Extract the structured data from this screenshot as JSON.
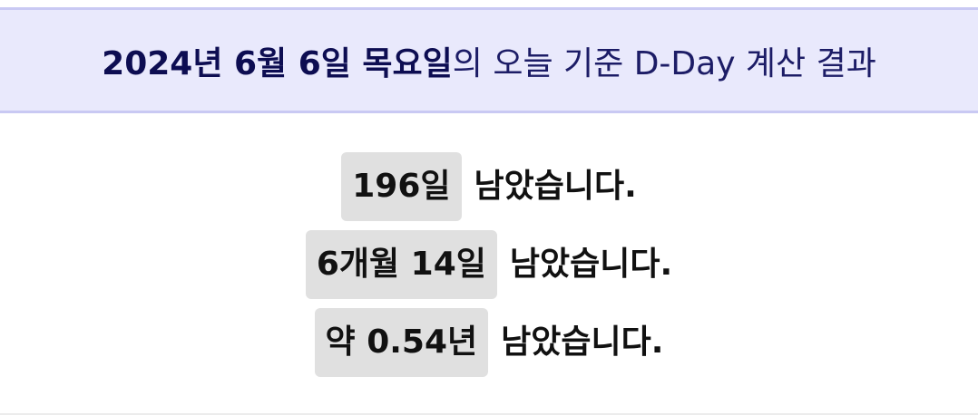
{
  "header": {
    "date": "2024년 6월 6일 목요일",
    "suffix": "의 오늘 기준 D-Day 계산 결과"
  },
  "results": [
    {
      "value": "196일",
      "suffix": "남았습니다."
    },
    {
      "value": "6개월 14일",
      "suffix": "남았습니다."
    },
    {
      "value": "약 0.54년",
      "suffix": "남았습니다."
    }
  ]
}
